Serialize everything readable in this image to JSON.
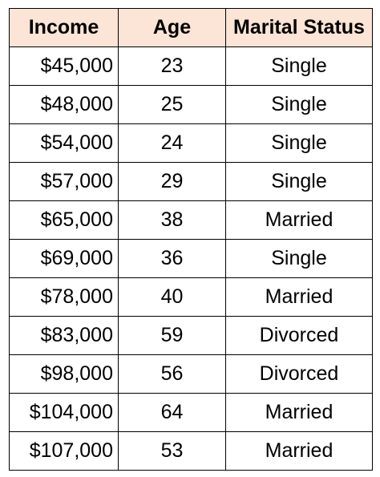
{
  "table": {
    "headers": {
      "income": "Income",
      "age": "Age",
      "marital_status": "Marital Status"
    },
    "rows": [
      {
        "income": "$45,000",
        "age": "23",
        "marital_status": "Single"
      },
      {
        "income": "$48,000",
        "age": "25",
        "marital_status": "Single"
      },
      {
        "income": "$54,000",
        "age": "24",
        "marital_status": "Single"
      },
      {
        "income": "$57,000",
        "age": "29",
        "marital_status": "Single"
      },
      {
        "income": "$65,000",
        "age": "38",
        "marital_status": "Married"
      },
      {
        "income": "$69,000",
        "age": "36",
        "marital_status": "Single"
      },
      {
        "income": "$78,000",
        "age": "40",
        "marital_status": "Married"
      },
      {
        "income": "$83,000",
        "age": "59",
        "marital_status": "Divorced"
      },
      {
        "income": "$98,000",
        "age": "56",
        "marital_status": "Divorced"
      },
      {
        "income": "$104,000",
        "age": "64",
        "marital_status": "Married"
      },
      {
        "income": "$107,000",
        "age": "53",
        "marital_status": "Married"
      }
    ]
  },
  "colors": {
    "header_fill": "#fce4d6",
    "grid_lines": "#000000",
    "text": "#000000"
  }
}
